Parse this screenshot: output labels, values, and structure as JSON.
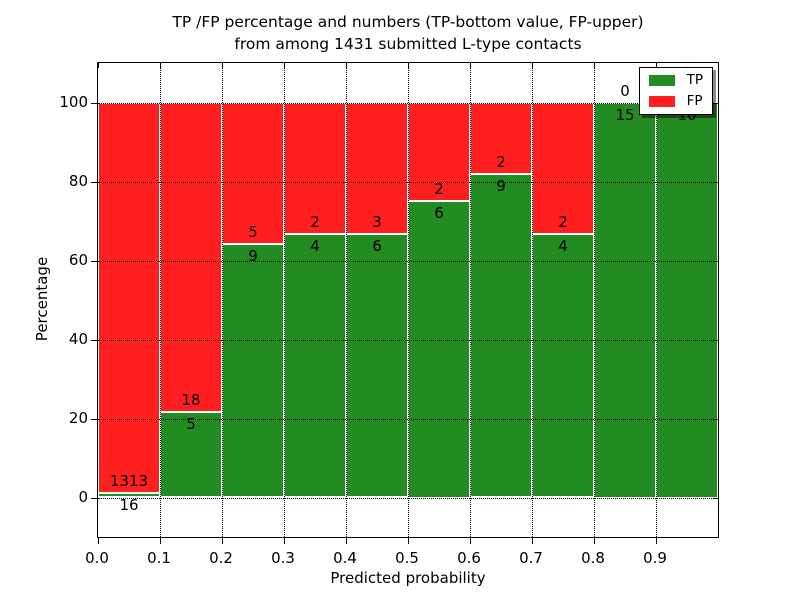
{
  "title": {
    "line1": "TP /FP percentage and numbers (TP-bottom value, FP-upper)",
    "line2": "from among 1431 submitted L-type contacts"
  },
  "chart_data": {
    "type": "bar",
    "stacked": true,
    "normalized_to_percent": true,
    "title": "TP /FP percentage and numbers (TP-bottom value, FP-upper) from among 1431 submitted L-type contacts",
    "xlabel": "Predicted probability",
    "ylabel": "Percentage",
    "x_bin_edges": [
      0.0,
      0.1,
      0.2,
      0.3,
      0.4,
      0.5,
      0.6,
      0.7,
      0.8,
      0.9,
      1.0
    ],
    "x_tick_labels": [
      "0.0",
      "0.1",
      "0.2",
      "0.3",
      "0.4",
      "0.5",
      "0.6",
      "0.7",
      "0.8",
      "0.9"
    ],
    "y_ticks": [
      0,
      20,
      40,
      60,
      80,
      100
    ],
    "xlim": [
      0.0,
      1.0
    ],
    "ylim": [
      -10,
      110
    ],
    "grid": {
      "style": "dotted",
      "color": "#000000",
      "on_top": true
    },
    "series": [
      {
        "name": "TP",
        "color": "#228b22",
        "counts": [
          16,
          5,
          9,
          4,
          6,
          6,
          9,
          4,
          15,
          10
        ]
      },
      {
        "name": "FP",
        "color": "#ff1f1f",
        "counts": [
          1313,
          18,
          5,
          2,
          3,
          2,
          2,
          2,
          0,
          0
        ]
      }
    ],
    "tp_percent_per_bin": [
      1.2,
      21.7,
      64.3,
      66.7,
      66.7,
      75.0,
      81.8,
      66.7,
      100.0,
      100.0
    ],
    "bar_edge_color": "#ffffff",
    "legend": {
      "position": "upper right",
      "entries": [
        {
          "label": "TP",
          "color": "#228b22"
        },
        {
          "label": "FP",
          "color": "#ff1f1f"
        }
      ]
    }
  }
}
